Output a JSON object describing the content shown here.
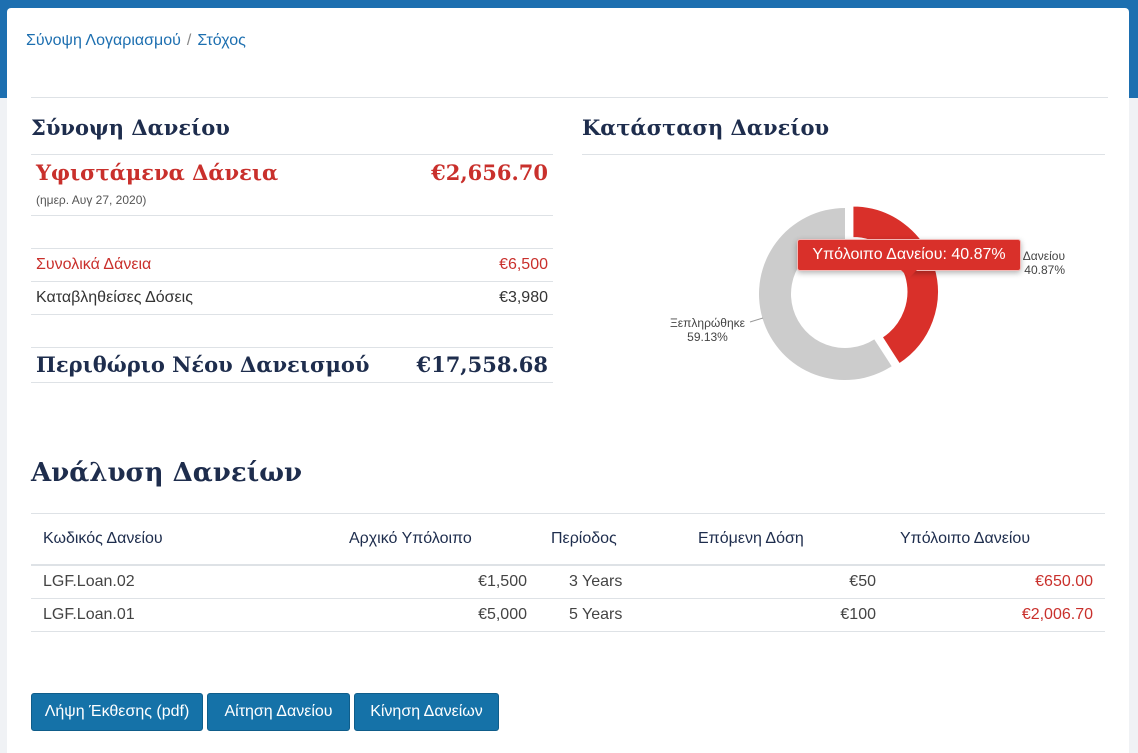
{
  "breadcrumb": {
    "home": "Σύνοψη Λογαριασμού",
    "separator": "/",
    "current": "Στόχος"
  },
  "summary": {
    "title": "Σύνοψη Δανείου",
    "outstanding_label": "Υφιστάμενα Δάνεια",
    "outstanding_value": "€2,656.70",
    "date_note": "(ημερ. Αυγ 27, 2020)",
    "total_label": "Συνολικά Δάνεια",
    "total_value": "€6,500",
    "paid_label": "Καταβληθείσες Δόσεις",
    "paid_value": "€3,980",
    "margin_label": "Περιθώριο Νέου Δανεισμού",
    "margin_value": "€17,558.68"
  },
  "status": {
    "title": "Κατάσταση Δανείου",
    "tooltip": "Υπόλοιπο Δανείου: 40.87%"
  },
  "chart_data": {
    "type": "pie",
    "title": "",
    "labels": [
      "Υπόλοιπο Δανείου",
      "Ξεπληρώθηκε"
    ],
    "values": [
      40.87,
      59.13
    ],
    "value_labels": [
      "40.87%",
      "59.13%"
    ],
    "colors": [
      "#d9302a",
      "#cccccc"
    ],
    "donut": true
  },
  "analysis": {
    "title": "Ανάλυση Δανείων",
    "columns": [
      "Κωδικός Δανείου",
      "Αρχικό Υπόλοιπο",
      "Περίοδος",
      "Επόμενη Δόση",
      "Υπόλοιπο Δανείου"
    ],
    "rows": [
      [
        "LGF.Loan.02",
        "€1,500",
        "3 Years",
        "€50",
        "€650.00"
      ],
      [
        "LGF.Loan.01",
        "€5,000",
        "5 Years",
        "€100",
        "€2,006.70"
      ]
    ]
  },
  "buttons": {
    "report": "Λήψη Έκθεσης (pdf)",
    "apply": "Αίτηση Δανείου",
    "movements": "Κίνηση Δανείων"
  },
  "colors": {
    "accent": "#1d6fb0",
    "danger": "#d9302a",
    "heading": "#1e2d4d",
    "button": "#1572a8"
  }
}
